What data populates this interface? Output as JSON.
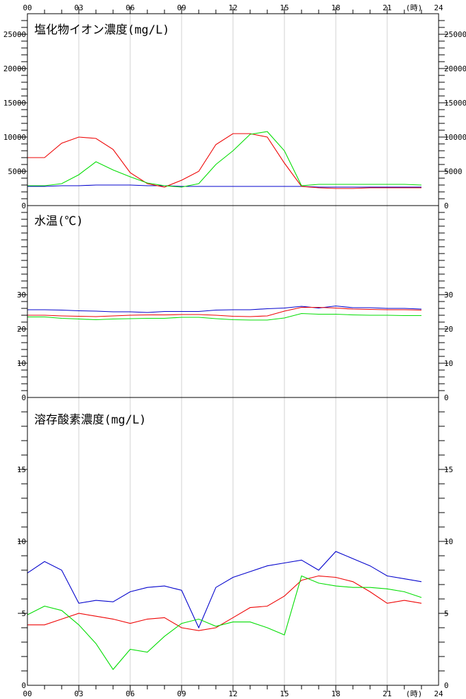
{
  "x_axis": {
    "tick_labels": [
      "00",
      "03",
      "06",
      "09",
      "12",
      "15",
      "18",
      "21",
      "24"
    ],
    "unit_label": "(時)"
  },
  "colors": {
    "blue": "#0000cc",
    "red": "#ee0000",
    "green": "#00dd00",
    "grid": "#d0d0d0"
  },
  "chart_data": [
    {
      "type": "line",
      "title": "塩化物イオン濃度(mg/L)",
      "xlim": [
        0,
        24
      ],
      "ylim": [
        0,
        28000
      ],
      "y_tick_labels": [
        "0",
        "5000",
        "10000",
        "15000",
        "20000",
        "25000"
      ],
      "y_tick_values": [
        0,
        5000,
        10000,
        15000,
        20000,
        25000
      ],
      "minor_tick_step": 1000,
      "grid": "vertical at 3-hour intervals",
      "x": [
        0,
        1,
        2,
        3,
        4,
        5,
        6,
        7,
        8,
        9,
        10,
        11,
        12,
        13,
        14,
        15,
        16,
        17,
        18,
        19,
        20,
        21,
        22,
        23
      ],
      "series": [
        {
          "color": "blue",
          "values": [
            2800,
            2800,
            2900,
            2900,
            3000,
            3000,
            3000,
            2900,
            2900,
            2800,
            2800,
            2800,
            2800,
            2800,
            2800,
            2800,
            2800,
            2700,
            2700,
            2700,
            2700,
            2700,
            2700,
            2700
          ]
        },
        {
          "color": "red",
          "values": [
            7000,
            7000,
            9100,
            10000,
            9800,
            8200,
            4800,
            3200,
            2700,
            3700,
            5000,
            8900,
            10500,
            10500,
            10000,
            6200,
            2800,
            2600,
            2500,
            2500,
            2600,
            2600,
            2600,
            2600
          ]
        },
        {
          "color": "green",
          "values": [
            2900,
            2900,
            3200,
            4500,
            6400,
            5200,
            4200,
            3300,
            2900,
            2700,
            3200,
            6000,
            8000,
            10400,
            10800,
            8000,
            2900,
            3100,
            3100,
            3100,
            3100,
            3100,
            3100,
            3000
          ]
        }
      ]
    },
    {
      "type": "line",
      "title": "水温(℃)",
      "xlim": [
        0,
        24
      ],
      "ylim": [
        0,
        56
      ],
      "y_tick_labels": [
        "0",
        "10",
        "20",
        "30"
      ],
      "y_tick_values": [
        0,
        10,
        20,
        30
      ],
      "minor_tick_step": 2,
      "grid": "vertical at 3-hour intervals",
      "x": [
        0,
        1,
        2,
        3,
        4,
        5,
        6,
        7,
        8,
        9,
        10,
        11,
        12,
        13,
        14,
        15,
        16,
        17,
        18,
        19,
        20,
        21,
        22,
        23
      ],
      "series": [
        {
          "color": "blue",
          "values": [
            25.6,
            25.6,
            25.5,
            25.3,
            25.2,
            25.0,
            25.0,
            24.8,
            25.1,
            25.1,
            25.1,
            25.5,
            25.6,
            25.6,
            25.9,
            26.1,
            26.6,
            26.1,
            26.7,
            26.2,
            26.2,
            26.0,
            26.0,
            25.8
          ]
        },
        {
          "color": "red",
          "values": [
            24.0,
            24.0,
            23.8,
            23.7,
            23.6,
            23.8,
            24.0,
            24.1,
            24.1,
            24.2,
            24.2,
            24.0,
            23.7,
            23.6,
            23.8,
            25.2,
            26.3,
            26.3,
            26.1,
            25.8,
            25.7,
            25.6,
            25.6,
            25.5
          ]
        },
        {
          "color": "green",
          "values": [
            23.5,
            23.5,
            23.1,
            22.9,
            22.7,
            22.9,
            23.0,
            23.1,
            23.1,
            23.4,
            23.4,
            23.0,
            22.7,
            22.6,
            22.6,
            23.2,
            24.5,
            24.3,
            24.3,
            24.1,
            24.0,
            24.0,
            23.9,
            23.9
          ]
        }
      ]
    },
    {
      "type": "line",
      "title": "溶存酸素濃度(mg/L)",
      "xlim": [
        0,
        24
      ],
      "ylim": [
        0,
        20
      ],
      "y_tick_labels": [
        "0",
        "5",
        "10",
        "15"
      ],
      "y_tick_values": [
        0,
        5,
        10,
        15
      ],
      "minor_tick_step": 1,
      "grid": "vertical at 3-hour intervals",
      "x": [
        0,
        1,
        2,
        3,
        4,
        5,
        6,
        7,
        8,
        9,
        10,
        11,
        12,
        13,
        14,
        15,
        16,
        17,
        18,
        19,
        20,
        21,
        22,
        23
      ],
      "series": [
        {
          "color": "blue",
          "values": [
            7.8,
            8.6,
            8.0,
            5.7,
            5.9,
            5.8,
            6.5,
            6.8,
            6.9,
            6.6,
            4.0,
            6.8,
            7.5,
            7.9,
            8.3,
            8.5,
            8.7,
            8.0,
            9.3,
            8.8,
            8.3,
            7.6,
            7.4,
            7.2
          ]
        },
        {
          "color": "red",
          "values": [
            4.2,
            4.2,
            4.6,
            5.0,
            4.8,
            4.6,
            4.3,
            4.6,
            4.7,
            4.0,
            3.8,
            4.0,
            4.7,
            5.4,
            5.5,
            6.2,
            7.3,
            7.6,
            7.5,
            7.2,
            6.5,
            5.7,
            5.9,
            5.7
          ]
        },
        {
          "color": "green",
          "values": [
            4.9,
            5.5,
            5.2,
            4.2,
            2.9,
            1.1,
            2.5,
            2.3,
            3.4,
            4.3,
            4.6,
            4.1,
            4.4,
            4.4,
            4.0,
            3.5,
            7.6,
            7.1,
            6.9,
            6.8,
            6.8,
            6.7,
            6.5,
            6.1
          ]
        }
      ]
    }
  ]
}
